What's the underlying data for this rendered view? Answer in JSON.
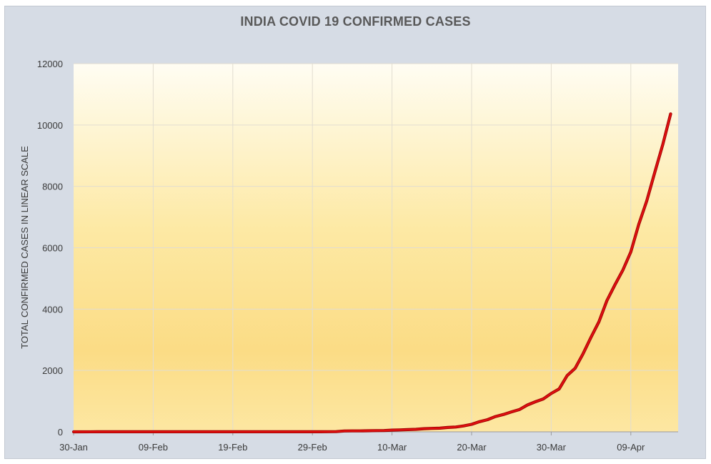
{
  "chart_data": {
    "type": "line",
    "title": "INDIA COVID 19 CONFIRMED CASES",
    "xlabel": "",
    "ylabel": "TOTAL CONFIRMED CASES IN LINEAR SCALE",
    "ylim": [
      0,
      12000
    ],
    "y_ticks": [
      0,
      2000,
      4000,
      6000,
      8000,
      10000,
      12000
    ],
    "x_ticks": [
      "30-Jan",
      "09-Feb",
      "19-Feb",
      "29-Feb",
      "10-Mar",
      "20-Mar",
      "30-Mar",
      "09-Apr"
    ],
    "grid": true,
    "legend": "none",
    "series": [
      {
        "color": "#e01010",
        "x": [
          "30-Jan",
          "02-Feb",
          "03-Feb",
          "04-Feb",
          "05-Feb",
          "10-Feb",
          "15-Feb",
          "20-Feb",
          "25-Feb",
          "01-Mar",
          "02-Mar",
          "03-Mar",
          "04-Mar",
          "05-Mar",
          "06-Mar",
          "07-Mar",
          "08-Mar",
          "09-Mar",
          "10-Mar",
          "11-Mar",
          "12-Mar",
          "13-Mar",
          "14-Mar",
          "15-Mar",
          "16-Mar",
          "17-Mar",
          "18-Mar",
          "19-Mar",
          "20-Mar",
          "21-Mar",
          "22-Mar",
          "23-Mar",
          "24-Mar",
          "25-Mar",
          "26-Mar",
          "27-Mar",
          "28-Mar",
          "29-Mar",
          "30-Mar",
          "31-Mar",
          "01-Apr",
          "02-Apr",
          "03-Apr",
          "04-Apr",
          "05-Apr",
          "06-Apr",
          "07-Apr",
          "08-Apr",
          "09-Apr",
          "10-Apr",
          "11-Apr",
          "12-Apr",
          "13-Apr",
          "14-Apr"
        ],
        "y": [
          1,
          2,
          3,
          3,
          3,
          3,
          3,
          3,
          3,
          3,
          5,
          6,
          28,
          30,
          31,
          34,
          39,
          43,
          56,
          62,
          73,
          82,
          102,
          113,
          119,
          142,
          156,
          194,
          244,
          330,
          396,
          499,
          566,
          649,
          724,
          873,
          979,
          1071,
          1251,
          1397,
          1834,
          2069,
          2547,
          3082,
          3588,
          4281,
          4789,
          5274,
          5865,
          6761,
          7529,
          8447,
          9352,
          10363
        ]
      }
    ]
  }
}
